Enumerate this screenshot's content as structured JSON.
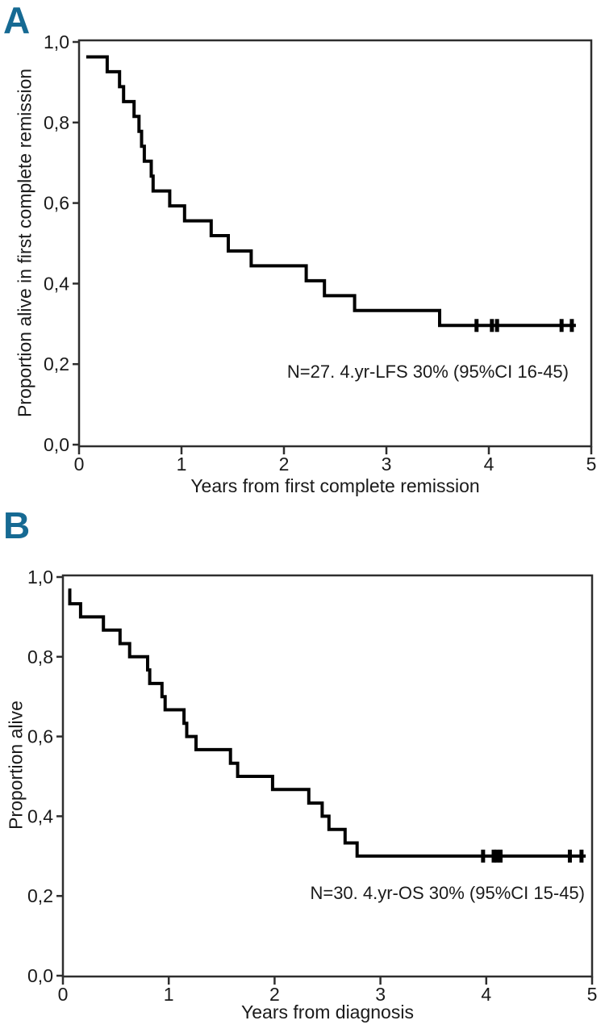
{
  "figure": {
    "background": "#ffffff"
  },
  "colors": {
    "curve": "#000000",
    "axis": "#2e2e2e",
    "panel_label": "#166a93",
    "text": "#1a1a1a"
  },
  "chart_data": [
    {
      "type": "line",
      "subtype": "kaplan-meier-step",
      "panel_label": "A",
      "title": "",
      "xlabel": "Years from first complete remission",
      "ylabel": "Proportion alive in first complete remission",
      "xlim": [
        0,
        5
      ],
      "ylim": [
        0.0,
        1.0
      ],
      "grid": false,
      "legend": "none",
      "x_ticks": {
        "values": [
          0,
          1,
          2,
          3,
          4,
          5
        ],
        "labels": [
          "0",
          "1",
          "2",
          "3",
          "4",
          "5"
        ]
      },
      "y_ticks": {
        "values": [
          1.0,
          0.8,
          0.6,
          0.4,
          0.2,
          0.0
        ],
        "labels": [
          "1,0",
          "0,8",
          "0,6",
          "0,4",
          "0,2",
          "0,0"
        ]
      },
      "annotation": "N=27. 4.yr-LFS 30% (95%CI 16-45)",
      "n_patients": 27,
      "series": [
        {
          "name": "Leukemia-free survival",
          "points": [
            [
              0.07,
              0.963
            ],
            [
              0.275,
              0.926
            ],
            [
              0.395,
              0.889
            ],
            [
              0.435,
              0.852
            ],
            [
              0.537,
              0.815
            ],
            [
              0.585,
              0.778
            ],
            [
              0.61,
              0.741
            ],
            [
              0.637,
              0.704
            ],
            [
              0.705,
              0.667
            ],
            [
              0.723,
              0.63
            ],
            [
              0.885,
              0.593
            ],
            [
              1.03,
              0.556
            ],
            [
              1.29,
              0.519
            ],
            [
              1.457,
              0.481
            ],
            [
              1.68,
              0.444
            ],
            [
              2.217,
              0.407
            ],
            [
              2.395,
              0.37
            ],
            [
              2.69,
              0.333
            ],
            [
              3.52,
              0.296
            ]
          ],
          "end_x": 4.85,
          "censored_x": [
            3.88,
            4.03,
            4.08,
            4.71,
            4.81
          ],
          "censored_y": 0.296
        }
      ]
    },
    {
      "type": "line",
      "subtype": "kaplan-meier-step",
      "panel_label": "B",
      "title": "",
      "xlabel": "Years from diagnosis",
      "ylabel": "Proportion alive",
      "xlim": [
        0,
        5
      ],
      "ylim": [
        0.0,
        1.0
      ],
      "grid": false,
      "legend": "none",
      "x_ticks": {
        "values": [
          0,
          1,
          2,
          3,
          4,
          5
        ],
        "labels": [
          "0",
          "1",
          "2",
          "3",
          "4",
          "5"
        ]
      },
      "y_ticks": {
        "values": [
          1.0,
          0.8,
          0.6,
          0.4,
          0.2,
          0.0
        ],
        "labels": [
          "1,0",
          "0,8",
          "0,6",
          "0,4",
          "0,2",
          "0,0"
        ]
      },
      "annotation": "N=30. 4.yr-OS 30% (95%CI 15-45)",
      "n_patients": 30,
      "series": [
        {
          "name": "Overall survival",
          "points": [
            [
              0.05,
              0.967
            ],
            [
              0.065,
              0.933
            ],
            [
              0.167,
              0.9
            ],
            [
              0.383,
              0.867
            ],
            [
              0.54,
              0.833
            ],
            [
              0.63,
              0.8
            ],
            [
              0.8,
              0.767
            ],
            [
              0.82,
              0.733
            ],
            [
              0.936,
              0.7
            ],
            [
              0.966,
              0.667
            ],
            [
              1.144,
              0.633
            ],
            [
              1.17,
              0.6
            ],
            [
              1.258,
              0.567
            ],
            [
              1.583,
              0.533
            ],
            [
              1.651,
              0.5
            ],
            [
              1.981,
              0.467
            ],
            [
              2.323,
              0.433
            ],
            [
              2.45,
              0.4
            ],
            [
              2.514,
              0.367
            ],
            [
              2.666,
              0.333
            ],
            [
              2.78,
              0.3
            ]
          ],
          "end_x": 4.94,
          "censored_x": [
            3.97,
            4.07,
            4.1,
            4.135,
            4.79,
            4.9
          ],
          "censored_y": 0.3
        }
      ]
    }
  ]
}
